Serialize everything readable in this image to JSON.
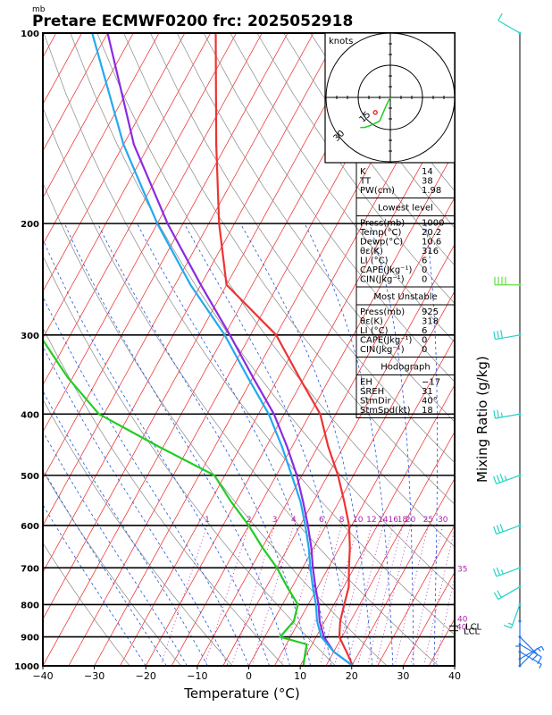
{
  "title": "Pretare ECMWF0200 frc: 2025052918",
  "pressure_unit_label": "mb",
  "xlabel": "Temperature (°C)",
  "right_label": "Mixing Ratio (g/kg)",
  "hodograph": {
    "unit_label": "knots",
    "ring_labels": [
      "15",
      "30",
      "45"
    ]
  },
  "indices": [
    {
      "name": "K",
      "value": "14"
    },
    {
      "name": "TT",
      "value": "38"
    },
    {
      "name": "PW(cm)",
      "value": "1.98"
    }
  ],
  "lowest_level": {
    "heading": "Lowest level",
    "rows": [
      {
        "name": "Press(mb)",
        "value": "1000"
      },
      {
        "name": "Temp(°C)",
        "value": "20.2"
      },
      {
        "name": "Dewp(°C)",
        "value": "10.6"
      },
      {
        "name": "θε(K)",
        "value": "316"
      },
      {
        "name": "LI (°C)",
        "value": "6"
      },
      {
        "name": "CAPE(Jkg⁻¹)",
        "value": "0"
      },
      {
        "name": "CIN(Jkg⁻¹)",
        "value": "0"
      }
    ]
  },
  "most_unstable": {
    "heading": "Most Unstable",
    "rows": [
      {
        "name": "Press(mb)",
        "value": "925"
      },
      {
        "name": "θε(K)",
        "value": "318"
      },
      {
        "name": "LI (°C)",
        "value": "6"
      },
      {
        "name": "CAPE(Jkg⁻¹)",
        "value": "0"
      },
      {
        "name": "CIN(Jkg⁻¹)",
        "value": "0"
      }
    ]
  },
  "hodograph_box": {
    "heading": "Hodograph",
    "rows": [
      {
        "name": "EH",
        "value": "−17"
      },
      {
        "name": "SREH",
        "value": "31"
      },
      {
        "name": "StmDir",
        "value": "40°"
      },
      {
        "name": "StmSpd(kt)",
        "value": "18"
      }
    ]
  },
  "lcl_labels": [
    "LCL",
    "LCL"
  ],
  "lcl_marker_label": "40",
  "colors": {
    "temperature": "#ee3333",
    "dewpoint": "#22cc22",
    "parcel": "#8a2be2",
    "virtual": "#22aaee",
    "mixing_ratio": "#aa22aa",
    "isotherm": "#ee2222",
    "dry_adiabat": "#888888",
    "moist_adiabat": "#2255dd",
    "wind_barb": "#22d4c4",
    "wind_barb_low": "#2277ee",
    "wind_barb_mid": "#66dd44"
  },
  "chart_data": {
    "type": "line",
    "diagram": "skew-T log-p",
    "x_range": [
      -40,
      40
    ],
    "x_ticks": [
      -40,
      -30,
      -20,
      -10,
      0,
      10,
      20,
      30,
      40
    ],
    "pressure_levels": [
      100,
      200,
      300,
      400,
      500,
      600,
      700,
      800,
      900,
      1000
    ],
    "pressure_range": [
      100,
      1000
    ],
    "mixing_ratio_values": [
      "1",
      "2",
      "3",
      "4",
      "6",
      "8",
      "10",
      "12",
      "14",
      "16",
      "18",
      "20",
      "25",
      "30",
      "35",
      "40"
    ],
    "series": [
      {
        "name": "Temperature",
        "points": [
          [
            1000,
            20.2
          ],
          [
            950,
            17.5
          ],
          [
            925,
            16
          ],
          [
            900,
            14.5
          ],
          [
            850,
            13
          ],
          [
            800,
            12
          ],
          [
            750,
            11
          ],
          [
            700,
            9
          ],
          [
            650,
            7
          ],
          [
            600,
            4.5
          ],
          [
            550,
            1
          ],
          [
            500,
            -3
          ],
          [
            450,
            -8
          ],
          [
            400,
            -13
          ],
          [
            350,
            -21
          ],
          [
            300,
            -30
          ],
          [
            250,
            -45
          ],
          [
            200,
            -53
          ],
          [
            150,
            -62
          ],
          [
            100,
            -74
          ]
        ]
      },
      {
        "name": "Dewpoint",
        "points": [
          [
            1000,
            10.6
          ],
          [
            950,
            9.5
          ],
          [
            925,
            9
          ],
          [
            900,
            3
          ],
          [
            850,
            4
          ],
          [
            800,
            3
          ],
          [
            750,
            -1
          ],
          [
            700,
            -5
          ],
          [
            650,
            -10
          ],
          [
            600,
            -15
          ],
          [
            550,
            -21
          ],
          [
            500,
            -27
          ],
          [
            450,
            -41
          ],
          [
            400,
            -56
          ],
          [
            350,
            -66
          ],
          [
            300,
            -76
          ],
          [
            250,
            -87
          ],
          [
            200,
            -98
          ],
          [
            150,
            -110
          ],
          [
            100,
            -120
          ]
        ]
      },
      {
        "name": "Parcel",
        "points": [
          [
            1000,
            20.2
          ],
          [
            950,
            15
          ],
          [
            900,
            11.5
          ],
          [
            850,
            9
          ],
          [
            800,
            7
          ],
          [
            750,
            4.5
          ],
          [
            700,
            2
          ],
          [
            650,
            -0.5
          ],
          [
            600,
            -3.5
          ],
          [
            550,
            -7
          ],
          [
            500,
            -11
          ],
          [
            450,
            -16
          ],
          [
            400,
            -22
          ],
          [
            350,
            -30
          ],
          [
            300,
            -39
          ],
          [
            250,
            -50
          ],
          [
            200,
            -63
          ],
          [
            150,
            -78
          ],
          [
            100,
            -95
          ]
        ]
      },
      {
        "name": "Virtual temperature",
        "points": [
          [
            1000,
            20.2
          ],
          [
            950,
            15
          ],
          [
            900,
            11
          ],
          [
            850,
            8.5
          ],
          [
            800,
            6.5
          ],
          [
            750,
            4
          ],
          [
            700,
            1.5
          ],
          [
            650,
            -1
          ],
          [
            600,
            -4
          ],
          [
            550,
            -7.5
          ],
          [
            500,
            -12
          ],
          [
            450,
            -17
          ],
          [
            400,
            -23
          ],
          [
            350,
            -31
          ],
          [
            300,
            -40
          ],
          [
            250,
            -52
          ],
          [
            200,
            -65
          ],
          [
            150,
            -80
          ],
          [
            100,
            -98
          ]
        ]
      }
    ],
    "wind_profile_knots": [
      {
        "pressure": 1000,
        "dir": 45,
        "speed": 5
      },
      {
        "pressure": 975,
        "dir": 60,
        "speed": 5
      },
      {
        "pressure": 950,
        "dir": 120,
        "speed": 5
      },
      {
        "pressure": 925,
        "dir": 120,
        "speed": 10
      },
      {
        "pressure": 900,
        "dir": 135,
        "speed": 10
      },
      {
        "pressure": 850,
        "dir": 180,
        "speed": 5
      },
      {
        "pressure": 800,
        "dir": 200,
        "speed": 15
      },
      {
        "pressure": 750,
        "dir": 240,
        "speed": 20
      },
      {
        "pressure": 700,
        "dir": 250,
        "speed": 25
      },
      {
        "pressure": 600,
        "dir": 250,
        "speed": 30
      },
      {
        "pressure": 500,
        "dir": 250,
        "speed": 35
      },
      {
        "pressure": 400,
        "dir": 260,
        "speed": 25
      },
      {
        "pressure": 300,
        "dir": 260,
        "speed": 30
      },
      {
        "pressure": 250,
        "dir": 270,
        "speed": 40
      },
      {
        "pressure": 100,
        "dir": 300,
        "speed": 10
      }
    ],
    "hodograph_points": [
      [
        0,
        0
      ],
      [
        -2,
        4
      ],
      [
        -5,
        11
      ],
      [
        -9,
        13
      ],
      [
        -12,
        14
      ],
      [
        -14,
        14
      ]
    ]
  }
}
